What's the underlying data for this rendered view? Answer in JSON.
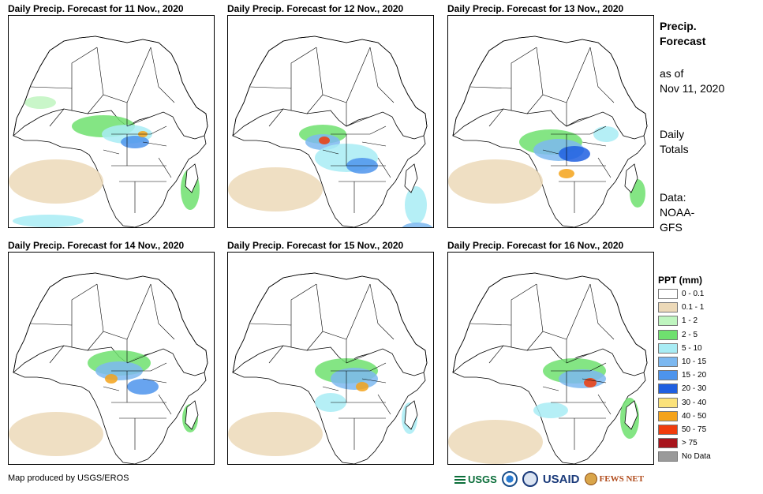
{
  "panels": [
    {
      "title": "Daily Precip. Forecast for 11 Nov., 2020"
    },
    {
      "title": "Daily Precip. Forecast for 12 Nov., 2020"
    },
    {
      "title": "Daily Precip. Forecast for 13 Nov., 2020"
    },
    {
      "title": "Daily Precip. Forecast for 14 Nov., 2020"
    },
    {
      "title": "Daily Precip. Forecast for 15 Nov., 2020"
    },
    {
      "title": "Daily Precip. Forecast for 16 Nov., 2020"
    }
  ],
  "side": {
    "heading_line1": "Precip.",
    "heading_line2": "Forecast",
    "asof_line1": "as of",
    "asof_line2": "Nov 11, 2020",
    "totals_line1": "Daily",
    "totals_line2": "Totals",
    "data_line1": "Data:",
    "data_line2": "NOAA-",
    "data_line3": "GFS"
  },
  "legend": {
    "title": "PPT (mm)",
    "items": [
      {
        "label": "0 - 0.1",
        "color": "#ffffff"
      },
      {
        "label": "0.1 - 1",
        "color": "#ecd9b8"
      },
      {
        "label": "1 - 2",
        "color": "#bff5bf"
      },
      {
        "label": "2 - 5",
        "color": "#6fe06f"
      },
      {
        "label": "5 - 10",
        "color": "#a8ecf4"
      },
      {
        "label": "10 - 15",
        "color": "#7cb8f0"
      },
      {
        "label": "15 - 20",
        "color": "#4d94ec"
      },
      {
        "label": "20 - 30",
        "color": "#1f5fe0"
      },
      {
        "label": "30 - 40",
        "color": "#fbe27a"
      },
      {
        "label": "40 - 50",
        "color": "#f5a31a"
      },
      {
        "label": "50 - 75",
        "color": "#f03c0c"
      },
      {
        "label": "> 75",
        "color": "#a8141c"
      },
      {
        "label": "No Data",
        "color": "#9a9a9a"
      }
    ]
  },
  "footer": {
    "credit": "Map produced by USGS/EROS"
  },
  "logos": {
    "usgs": "USGS",
    "usaid": "USAID",
    "fewsnet": "FEWS NET"
  }
}
